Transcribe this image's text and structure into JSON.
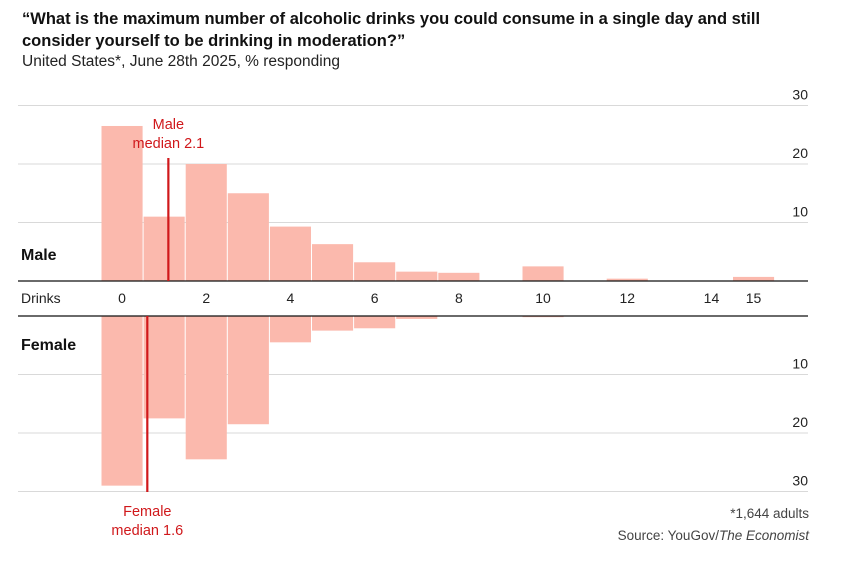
{
  "title": "“What is the maximum number of alcoholic drinks you could consume in a single day and still consider yourself to be drinking in moderation?”",
  "subtitle": "United States*, June 28th 2025, % responding",
  "note": "*1,644 adults",
  "source_prefix": "Source: YouGov/",
  "source_italic": "The Economist",
  "colors": {
    "bar": "#fbb9ad",
    "median": "#d0181b",
    "grid": "#d9d9d9",
    "axis": "#111111"
  },
  "chart_data": {
    "type": "bar",
    "orientation": "mirrored-histogram",
    "x_label": "Drinks",
    "x_ticks": [
      0,
      2,
      4,
      6,
      8,
      10,
      12,
      14,
      15
    ],
    "y_ticks": [
      10,
      20,
      30
    ],
    "y_range": [
      0,
      30
    ],
    "series": [
      {
        "name": "Male",
        "bins": [
          0,
          1,
          2,
          3,
          4,
          5,
          6,
          7,
          8,
          10,
          12,
          15
        ],
        "values": [
          26.5,
          11,
          20,
          15,
          9.3,
          6.3,
          3.2,
          1.6,
          1.4,
          2.5,
          0.4,
          0.7
        ],
        "median": 2.1,
        "median_label": [
          "Male",
          "median 2.1"
        ]
      },
      {
        "name": "Female",
        "bins": [
          0,
          1,
          2,
          3,
          4,
          5,
          6,
          7,
          10
        ],
        "values": [
          29,
          17.5,
          24.5,
          18.5,
          4.5,
          2.5,
          2.1,
          0.5,
          0.2
        ],
        "median": 1.6,
        "median_label": [
          "Female",
          "median 1.6"
        ]
      }
    ]
  }
}
